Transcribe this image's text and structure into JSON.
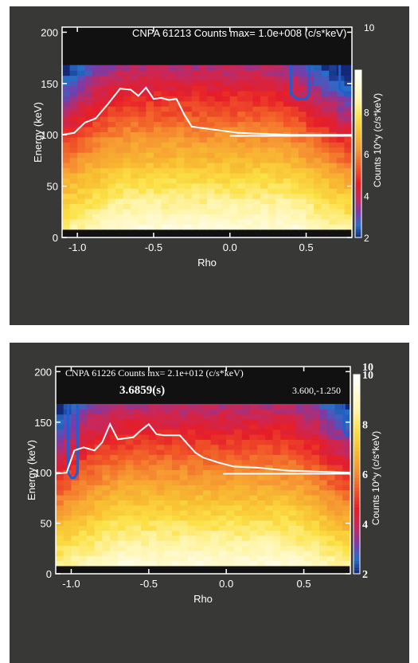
{
  "chart_data": [
    {
      "type": "heatmap",
      "title": "CNPA 61213 Counts  max=  1.0e+008 (c/s*keV)",
      "time_label": "",
      "coord_label": "",
      "xlabel": "Rho",
      "ylabel": "Energy (keV)",
      "colorbar_label": "Counts  10^y  (c/s*keV)",
      "xlim": [
        -1.1,
        0.8
      ],
      "ylim": [
        0,
        205
      ],
      "x_ticks": [
        "-1.0",
        "-0.5",
        "0.0",
        "0.5"
      ],
      "y_ticks": [
        "0",
        "50",
        "100",
        "150",
        "200"
      ],
      "colorbar_ticks": [
        "2",
        "4",
        "6",
        "8"
      ],
      "colorbar_top_label": "10",
      "colorbar_range": [
        2,
        10
      ],
      "data_energy_range": [
        8,
        168
      ],
      "curve_name": "",
      "curve": {
        "x": [
          -1.1,
          -1.02,
          -0.95,
          -0.88,
          -0.8,
          -0.72,
          -0.65,
          -0.6,
          -0.55,
          -0.5,
          -0.45,
          -0.4,
          -0.35,
          -0.3,
          -0.25,
          -0.15,
          -0.05,
          0.05,
          0.2,
          0.4,
          0.6,
          0.8
        ],
        "y": [
          100,
          102,
          112,
          116,
          130,
          145,
          144,
          138,
          146,
          135,
          136,
          134,
          135,
          120,
          108,
          106,
          104,
          102,
          101,
          100,
          100,
          100
        ]
      },
      "hline": {
        "x": [
          0.0,
          0.8
        ],
        "y": [
          99,
          99
        ]
      },
      "contours": [
        {
          "x": [
            0.4,
            0.4,
            0.44,
            0.5,
            0.52,
            0.52
          ],
          "y": [
            168,
            140,
            135,
            135,
            140,
            168
          ]
        },
        {
          "x": [
            0.72,
            0.72,
            0.76,
            0.8
          ],
          "y": [
            168,
            145,
            140,
            138
          ]
        }
      ]
    },
    {
      "type": "heatmap",
      "title": "CNPA 61226 Counts  mx=  2.1e+012 (c/s*keV)",
      "time_label": "3.6859(s)",
      "coord_label": "3.600,-1.250",
      "xlabel": "Rho",
      "ylabel": "Energy (keV)",
      "colorbar_label": "Counts  10^y  (c/s*keV)",
      "xlim": [
        -1.1,
        0.8
      ],
      "ylim": [
        0,
        205
      ],
      "x_ticks": [
        "-1.0",
        "-0.5",
        "0.0",
        "0.5"
      ],
      "y_ticks": [
        "0",
        "50",
        "100",
        "150",
        "200"
      ],
      "colorbar_ticks": [
        "2",
        "4",
        "6",
        "8",
        "10"
      ],
      "colorbar_top_label": "10",
      "colorbar_range": [
        2,
        10
      ],
      "data_energy_range": [
        8,
        168
      ],
      "curve_name": "",
      "curve": {
        "x": [
          -1.1,
          -1.03,
          -0.98,
          -0.92,
          -0.85,
          -0.8,
          -0.75,
          -0.7,
          -0.65,
          -0.6,
          -0.55,
          -0.5,
          -0.45,
          -0.4,
          -0.3,
          -0.2,
          -0.15,
          -0.05,
          0.05,
          0.2,
          0.4,
          0.6,
          0.8
        ],
        "y": [
          99,
          100,
          122,
          125,
          122,
          130,
          148,
          133,
          134,
          135,
          142,
          148,
          138,
          137,
          137,
          120,
          115,
          110,
          106,
          105,
          102,
          101,
          100
        ]
      },
      "hline": {
        "x": [
          -0.02,
          0.8
        ],
        "y": [
          99,
          99
        ]
      },
      "contours": [
        {
          "x": [
            -1.02,
            -1.02,
            -1.0,
            -0.98,
            -0.96,
            -0.96
          ],
          "y": [
            168,
            100,
            95,
            95,
            100,
            168
          ]
        },
        {
          "x": [
            0.76,
            0.76,
            0.78,
            0.8
          ],
          "y": [
            168,
            142,
            136,
            140
          ]
        }
      ]
    }
  ]
}
